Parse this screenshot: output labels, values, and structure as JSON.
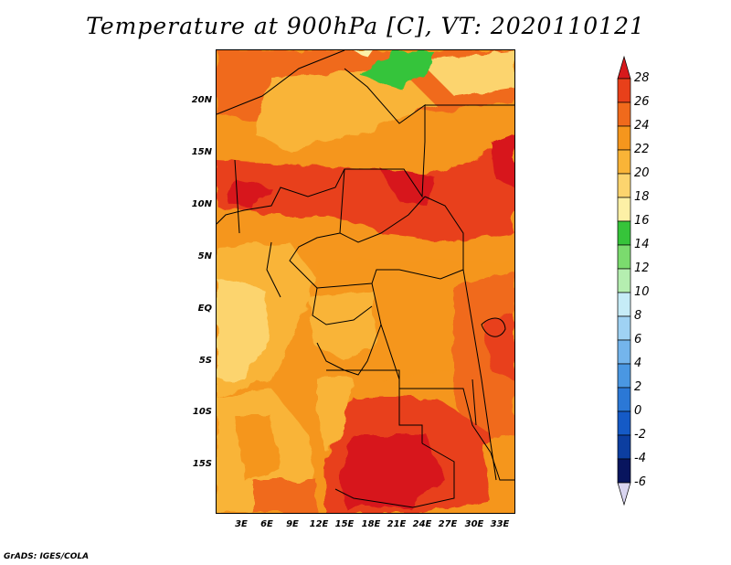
{
  "title": "Temperature at 900hPa [C], VT: 2020110121",
  "credit": "GrADS: IGES/COLA",
  "lat_labels": [
    "20N",
    "15N",
    "10N",
    "5N",
    "EQ",
    "5S",
    "10S",
    "15S"
  ],
  "lon_labels": [
    "3E",
    "6E",
    "9E",
    "12E",
    "15E",
    "18E",
    "21E",
    "24E",
    "27E",
    "30E",
    "33E"
  ],
  "colorbar": {
    "levels": [
      "28",
      "26",
      "24",
      "22",
      "20",
      "18",
      "16",
      "14",
      "12",
      "10",
      "8",
      "6",
      "4",
      "2",
      "0",
      "-2",
      "-4",
      "-6"
    ],
    "colors": [
      "#d7191c",
      "#e8401a",
      "#f06a1c",
      "#f5961d",
      "#f9b437",
      "#fcd46e",
      "#fdf0a6",
      "#36c43a",
      "#7bdb6e",
      "#b5eeb0",
      "#c6ecf7",
      "#9fd2f3",
      "#74b5ec",
      "#4a97e2",
      "#2b78d6",
      "#155ac6",
      "#0c3ea0",
      "#08155e",
      "#d9d5f0"
    ]
  },
  "map": {
    "field": "Temperature at 900hPa",
    "units": "C",
    "valid_time": "2020110121"
  }
}
